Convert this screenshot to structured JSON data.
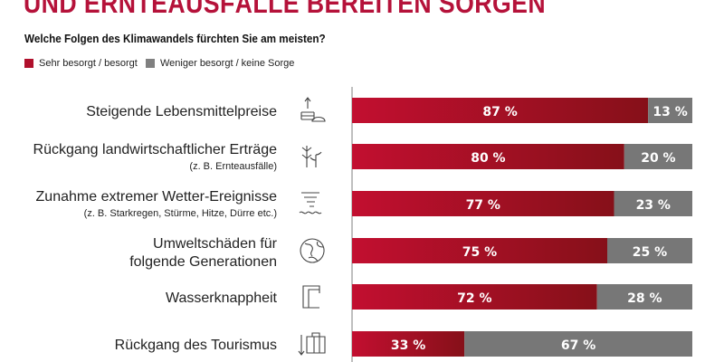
{
  "title": "UND ERNTEAUSFÄLLE BEREITEN SORGEN",
  "subtitle": "Welche Folgen des Klimawandels fürchten Sie am meisten?",
  "colors": {
    "title": "#b5123a",
    "concerned_start": "#c20f30",
    "concerned_end": "#861019",
    "not_concerned": "#777777"
  },
  "chart_data": {
    "type": "bar",
    "orientation": "horizontal",
    "stacked": true,
    "xlim": [
      0,
      100
    ],
    "unit": "%",
    "legend_position": "top-left",
    "categories": [
      {
        "label": "Steigende Lebensmittelpreise",
        "note": "",
        "icon": "coins-bread-up-arrow-icon"
      },
      {
        "label": "Rückgang landwirtschaftlicher Erträge",
        "note": "(z. B. Ernteausfälle)",
        "icon": "wheat-plant-icon"
      },
      {
        "label": "Zunahme extremer Wetter-Ereignisse",
        "note": "(z. B. Starkregen, Stürme, Hitze, Dürre etc.)",
        "icon": "tornado-water-icon"
      },
      {
        "label": "Umweltschäden für",
        "label2": "folgende Generationen",
        "note": "",
        "icon": "globe-icon"
      },
      {
        "label": "Wasserknappheit",
        "note": "",
        "icon": "faucet-icon"
      },
      {
        "label": "Rückgang des Tourismus",
        "note": "",
        "icon": "suitcase-down-arrow-icon"
      }
    ],
    "series": [
      {
        "name": "Sehr besorgt / besorgt",
        "values": [
          87,
          80,
          77,
          75,
          72,
          33
        ]
      },
      {
        "name": "Weniger besorgt / keine Sorge",
        "values": [
          13,
          20,
          23,
          25,
          28,
          67
        ]
      }
    ]
  }
}
